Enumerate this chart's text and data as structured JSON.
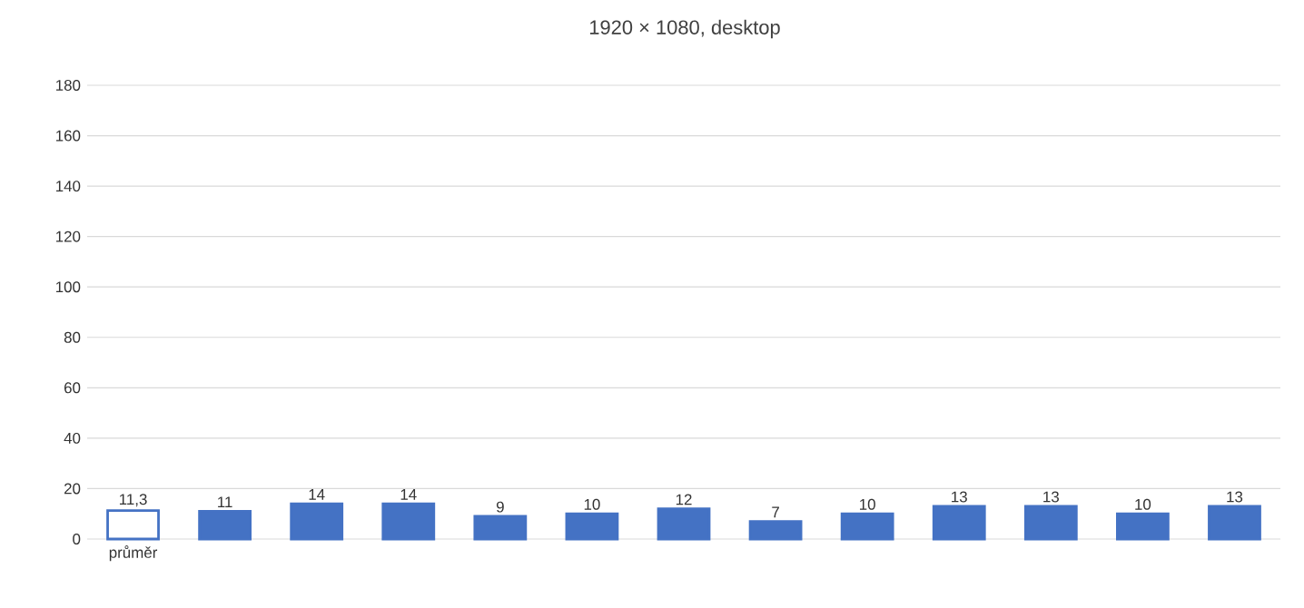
{
  "chart_data": {
    "type": "bar",
    "title": "1920 × 1080, desktop",
    "categories": [
      "průměr",
      null,
      null,
      null,
      null,
      null,
      null,
      null,
      null,
      null,
      null,
      null,
      null
    ],
    "values": [
      11.3,
      11,
      14,
      14,
      9,
      10,
      12,
      7,
      10,
      13,
      13,
      10,
      13
    ],
    "value_labels": [
      "11,3",
      "11",
      "14",
      "14",
      "9",
      "10",
      "12",
      "7",
      "10",
      "13",
      "13",
      "10",
      "13"
    ],
    "color": "#4472c4",
    "colors": [
      "#ffffff",
      "#4472c4",
      "#4472c4",
      "#4472c4",
      "#4472c4",
      "#4472c4",
      "#4472c4",
      "#4472c4",
      "#4472c4",
      "#4472c4",
      "#4472c4",
      "#4472c4",
      "#4472c4"
    ],
    "ylim": [
      0,
      180
    ],
    "yticks": [
      0,
      20,
      40,
      60,
      80,
      100,
      120,
      140,
      160,
      180
    ],
    "grid": "y"
  }
}
